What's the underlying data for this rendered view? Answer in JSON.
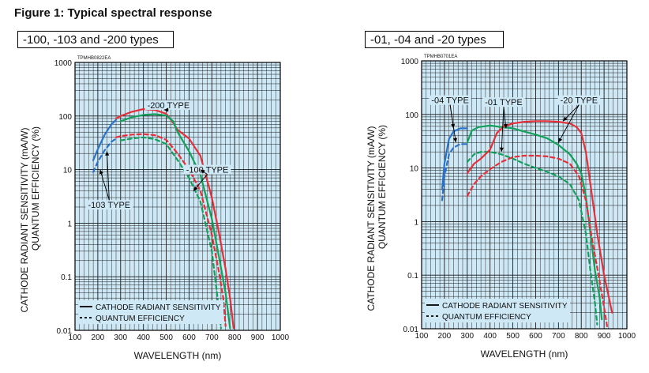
{
  "figure_title": "Figure 1: Typical spectral response",
  "colors": {
    "blue": "#2a72c8",
    "green": "#12a05a",
    "red": "#e4303a",
    "plot_bg": "#cfe8f6",
    "grid": "#1a1a1a"
  },
  "chart_data": [
    {
      "panel_label": "-100, -103 and -200 types",
      "code": "TPMHB0822EA",
      "type": "line",
      "xlabel": "WAVELENGTH (nm)",
      "ylabel_1": "CATHODE RADIANT SENSITIVITY (mA/W)",
      "ylabel_2": "QUANTUM EFFICIENCY (%)",
      "xlim": [
        100,
        1000
      ],
      "ylim": [
        0.01,
        1000
      ],
      "yscale": "log",
      "grid": true,
      "x_ticks": [
        "100",
        "200",
        "300",
        "400",
        "500",
        "600",
        "700",
        "800",
        "900",
        "1000"
      ],
      "y_ticks": [
        "0.01",
        "0.1",
        "1",
        "10",
        "100",
        "1000"
      ],
      "legend": {
        "position": "bottom-left",
        "items": [
          "CATHODE RADIANT SENSITIVITY",
          "QUANTUM EFFICIENCY"
        ]
      },
      "annotations": [
        {
          "text": "-200 TYPE",
          "anchor": [
            510,
            160
          ],
          "targets": [
            [
              490,
              130
            ]
          ]
        },
        {
          "text": "-100 TYPE",
          "anchor": [
            680,
            10
          ],
          "targets": [
            [
              650,
              10
            ],
            [
              620,
              4
            ]
          ]
        },
        {
          "text": "-103 TYPE",
          "anchor": [
            250,
            2.2
          ],
          "targets": [
            [
              210,
              10
            ],
            [
              240,
              22
            ]
          ]
        }
      ],
      "series": [
        {
          "color": "blue",
          "style": "solid",
          "points": [
            [
              180,
              15
            ],
            [
              200,
              24
            ],
            [
              230,
              45
            ],
            [
              260,
              70
            ],
            [
              280,
              85
            ]
          ]
        },
        {
          "color": "blue",
          "style": "dashed",
          "points": [
            [
              180,
              9
            ],
            [
              200,
              14
            ],
            [
              230,
              23
            ],
            [
              260,
              33
            ],
            [
              280,
              38
            ]
          ]
        },
        {
          "color": "red",
          "style": "solid",
          "points": [
            [
              280,
              90
            ],
            [
              300,
              100
            ],
            [
              350,
              120
            ],
            [
              400,
              135
            ],
            [
              450,
              130
            ],
            [
              500,
              110
            ],
            [
              530,
              75
            ],
            [
              550,
              55
            ],
            [
              600,
              38
            ],
            [
              650,
              18
            ],
            [
              700,
              3
            ],
            [
              730,
              0.7
            ],
            [
              760,
              0.14
            ],
            [
              780,
              0.04
            ],
            [
              795,
              0.011
            ]
          ]
        },
        {
          "color": "red",
          "style": "dashed",
          "points": [
            [
              280,
              40
            ],
            [
              300,
              42
            ],
            [
              350,
              45
            ],
            [
              400,
              46
            ],
            [
              450,
              44
            ],
            [
              500,
              36
            ],
            [
              550,
              20
            ],
            [
              600,
              10
            ],
            [
              650,
              4
            ],
            [
              700,
              0.6
            ],
            [
              730,
              0.13
            ],
            [
              750,
              0.04
            ],
            [
              760,
              0.012
            ]
          ]
        },
        {
          "color": "green",
          "style": "solid",
          "points": [
            [
              300,
              80
            ],
            [
              350,
              95
            ],
            [
              400,
              105
            ],
            [
              450,
              108
            ],
            [
              500,
              102
            ],
            [
              530,
              80
            ],
            [
              550,
              50
            ],
            [
              600,
              22
            ],
            [
              650,
              8
            ],
            [
              700,
              1.2
            ],
            [
              730,
              0.25
            ],
            [
              760,
              0.05
            ],
            [
              780,
              0.011
            ]
          ]
        },
        {
          "color": "green",
          "style": "dashed",
          "points": [
            [
              300,
              35
            ],
            [
              350,
              38
            ],
            [
              400,
              40
            ],
            [
              450,
              37
            ],
            [
              500,
              30
            ],
            [
              550,
              15
            ],
            [
              600,
              7
            ],
            [
              650,
              2.5
            ],
            [
              700,
              0.3
            ],
            [
              720,
              0.06
            ],
            [
              740,
              0.011
            ]
          ]
        }
      ]
    },
    {
      "panel_label": "-01, -04 and -20 types",
      "code": "TPMHB0701EA",
      "type": "line",
      "xlabel": "WAVELENGTH (nm)",
      "ylabel_1": "CATHODE RADIANT SENSITIVITY (mA/W)",
      "ylabel_2": "QUANTUM EFFICIENCY (%)",
      "xlim": [
        100,
        1000
      ],
      "ylim": [
        0.01,
        1000
      ],
      "yscale": "log",
      "grid": true,
      "x_ticks": [
        "100",
        "200",
        "300",
        "400",
        "500",
        "600",
        "700",
        "800",
        "900",
        "1000"
      ],
      "y_ticks": [
        "0.01",
        "0.1",
        "1",
        "10",
        "100",
        "1000"
      ],
      "legend": {
        "position": "bottom-left",
        "items": [
          "CATHODE RADIANT SENSITIVITY",
          "QUANTUM EFFICIENCY"
        ]
      },
      "annotations": [
        {
          "text": "-04 TYPE",
          "anchor": [
            225,
            185
          ],
          "targets": [
            [
              240,
              55
            ],
            [
              250,
              30
            ]
          ]
        },
        {
          "text": "-01 TYPE",
          "anchor": [
            460,
            170
          ],
          "targets": [
            [
              470,
              55
            ],
            [
              450,
              20
            ]
          ]
        },
        {
          "text": "-20 TYPE",
          "anchor": [
            790,
            185
          ],
          "targets": [
            [
              720,
              75
            ],
            [
              700,
              30
            ]
          ]
        }
      ],
      "series": [
        {
          "color": "blue",
          "style": "solid",
          "points": [
            [
              190,
              4
            ],
            [
              200,
              12
            ],
            [
              220,
              35
            ],
            [
              240,
              48
            ],
            [
              270,
              55
            ],
            [
              300,
              55
            ]
          ]
        },
        {
          "color": "blue",
          "style": "dashed",
          "points": [
            [
              190,
              2.5
            ],
            [
              200,
              7
            ],
            [
              220,
              18
            ],
            [
              240,
              24
            ],
            [
              270,
              28
            ],
            [
              300,
              28
            ]
          ]
        },
        {
          "color": "green",
          "style": "solid",
          "points": [
            [
              300,
              30
            ],
            [
              320,
              50
            ],
            [
              350,
              58
            ],
            [
              400,
              62
            ],
            [
              450,
              58
            ],
            [
              500,
              55
            ],
            [
              550,
              48
            ],
            [
              600,
              42
            ],
            [
              650,
              36
            ],
            [
              700,
              27
            ],
            [
              750,
              18
            ],
            [
              780,
              12
            ],
            [
              800,
              8
            ],
            [
              820,
              3
            ],
            [
              840,
              0.6
            ],
            [
              860,
              0.12
            ],
            [
              880,
              0.04
            ],
            [
              890,
              0.015
            ]
          ]
        },
        {
          "color": "green",
          "style": "dashed",
          "points": [
            [
              300,
              13
            ],
            [
              330,
              18
            ],
            [
              360,
              20
            ],
            [
              400,
              20
            ],
            [
              450,
              18
            ],
            [
              500,
              15
            ],
            [
              550,
              12
            ],
            [
              600,
              10
            ],
            [
              650,
              8.5
            ],
            [
              700,
              7
            ],
            [
              750,
              5
            ],
            [
              790,
              2.5
            ],
            [
              820,
              0.6
            ],
            [
              840,
              0.12
            ],
            [
              860,
              0.03
            ],
            [
              870,
              0.012
            ]
          ]
        },
        {
          "color": "red",
          "style": "solid",
          "points": [
            [
              300,
              8
            ],
            [
              330,
              12
            ],
            [
              360,
              15
            ],
            [
              400,
              22
            ],
            [
              430,
              45
            ],
            [
              460,
              60
            ],
            [
              500,
              68
            ],
            [
              550,
              73
            ],
            [
              600,
              75
            ],
            [
              650,
              75
            ],
            [
              700,
              73
            ],
            [
              750,
              68
            ],
            [
              780,
              58
            ],
            [
              800,
              45
            ],
            [
              820,
              20
            ],
            [
              840,
              5
            ],
            [
              870,
              0.6
            ],
            [
              900,
              0.1
            ],
            [
              920,
              0.04
            ],
            [
              935,
              0.02
            ]
          ]
        },
        {
          "color": "red",
          "style": "dashed",
          "points": [
            [
              300,
              3
            ],
            [
              330,
              5
            ],
            [
              360,
              7
            ],
            [
              400,
              9.5
            ],
            [
              450,
              13
            ],
            [
              500,
              16
            ],
            [
              550,
              17
            ],
            [
              600,
              17
            ],
            [
              650,
              16.5
            ],
            [
              700,
              15
            ],
            [
              750,
              12
            ],
            [
              790,
              7
            ],
            [
              820,
              2.5
            ],
            [
              850,
              0.4
            ],
            [
              880,
              0.08
            ],
            [
              900,
              0.025
            ],
            [
              915,
              0.01
            ]
          ]
        }
      ]
    }
  ]
}
